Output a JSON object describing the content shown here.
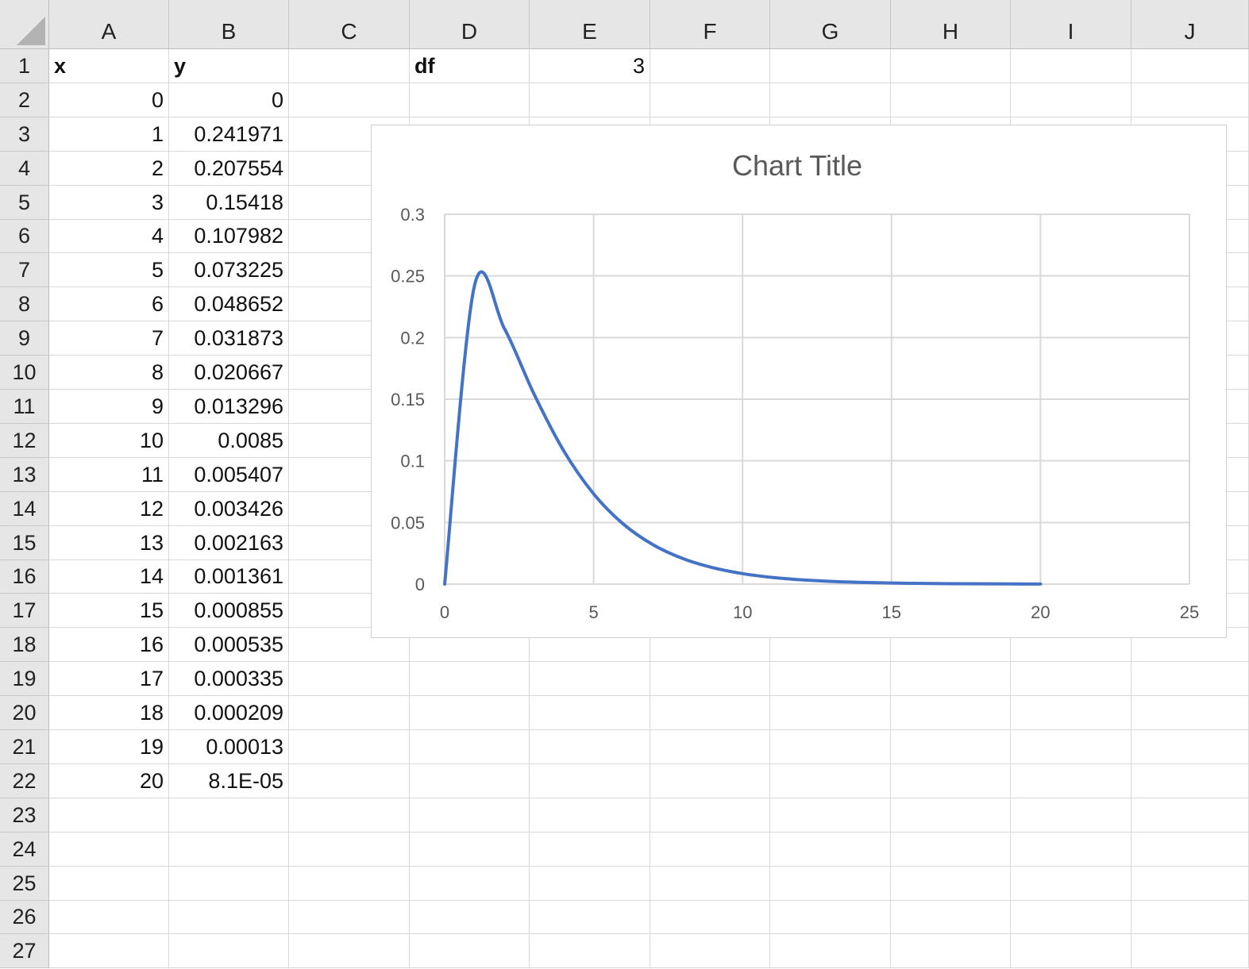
{
  "sheet": {
    "columns": [
      "A",
      "B",
      "C",
      "D",
      "E",
      "F",
      "G",
      "H",
      "I",
      "J"
    ],
    "rows": [
      "1",
      "2",
      "3",
      "4",
      "5",
      "6",
      "7",
      "8",
      "9",
      "10",
      "11",
      "12",
      "13",
      "14",
      "15",
      "16",
      "17",
      "18",
      "19",
      "20",
      "21",
      "22",
      "23",
      "24",
      "25",
      "26",
      "27"
    ],
    "header_x": "x",
    "header_y": "y",
    "df_label": "df",
    "df_value": "3",
    "x_values": [
      "0",
      "1",
      "2",
      "3",
      "4",
      "5",
      "6",
      "7",
      "8",
      "9",
      "10",
      "11",
      "12",
      "13",
      "14",
      "15",
      "16",
      "17",
      "18",
      "19",
      "20"
    ],
    "y_values": [
      "0",
      "0.241971",
      "0.207554",
      "0.15418",
      "0.107982",
      "0.073225",
      "0.048652",
      "0.031873",
      "0.020667",
      "0.013296",
      "0.0085",
      "0.005407",
      "0.003426",
      "0.002163",
      "0.001361",
      "0.000855",
      "0.000535",
      "0.000335",
      "0.000209",
      "0.00013",
      "8.1E-05"
    ]
  },
  "chart_data": {
    "type": "scatter",
    "title": "Chart Title",
    "xlabel": "",
    "ylabel": "",
    "xlim": [
      0,
      25
    ],
    "ylim": [
      0,
      0.3
    ],
    "x_ticks": [
      "0",
      "5",
      "10",
      "15",
      "20",
      "25"
    ],
    "y_ticks": [
      "0",
      "0.05",
      "0.1",
      "0.15",
      "0.2",
      "0.25",
      "0.3"
    ],
    "grid": true,
    "legend": "none",
    "line_style": "smoothed",
    "series_color": "#4472c4",
    "series": [
      {
        "x": [
          0,
          1,
          2,
          3,
          4,
          5,
          6,
          7,
          8,
          9,
          10,
          11,
          12,
          13,
          14,
          15,
          16,
          17,
          18,
          19,
          20
        ],
        "values": [
          0,
          0.241971,
          0.207554,
          0.15418,
          0.107982,
          0.073225,
          0.048652,
          0.031873,
          0.020667,
          0.013296,
          0.0085,
          0.005407,
          0.003426,
          0.002163,
          0.001361,
          0.000855,
          0.000535,
          0.000335,
          0.000209,
          0.00013,
          8.1e-05
        ]
      }
    ]
  }
}
